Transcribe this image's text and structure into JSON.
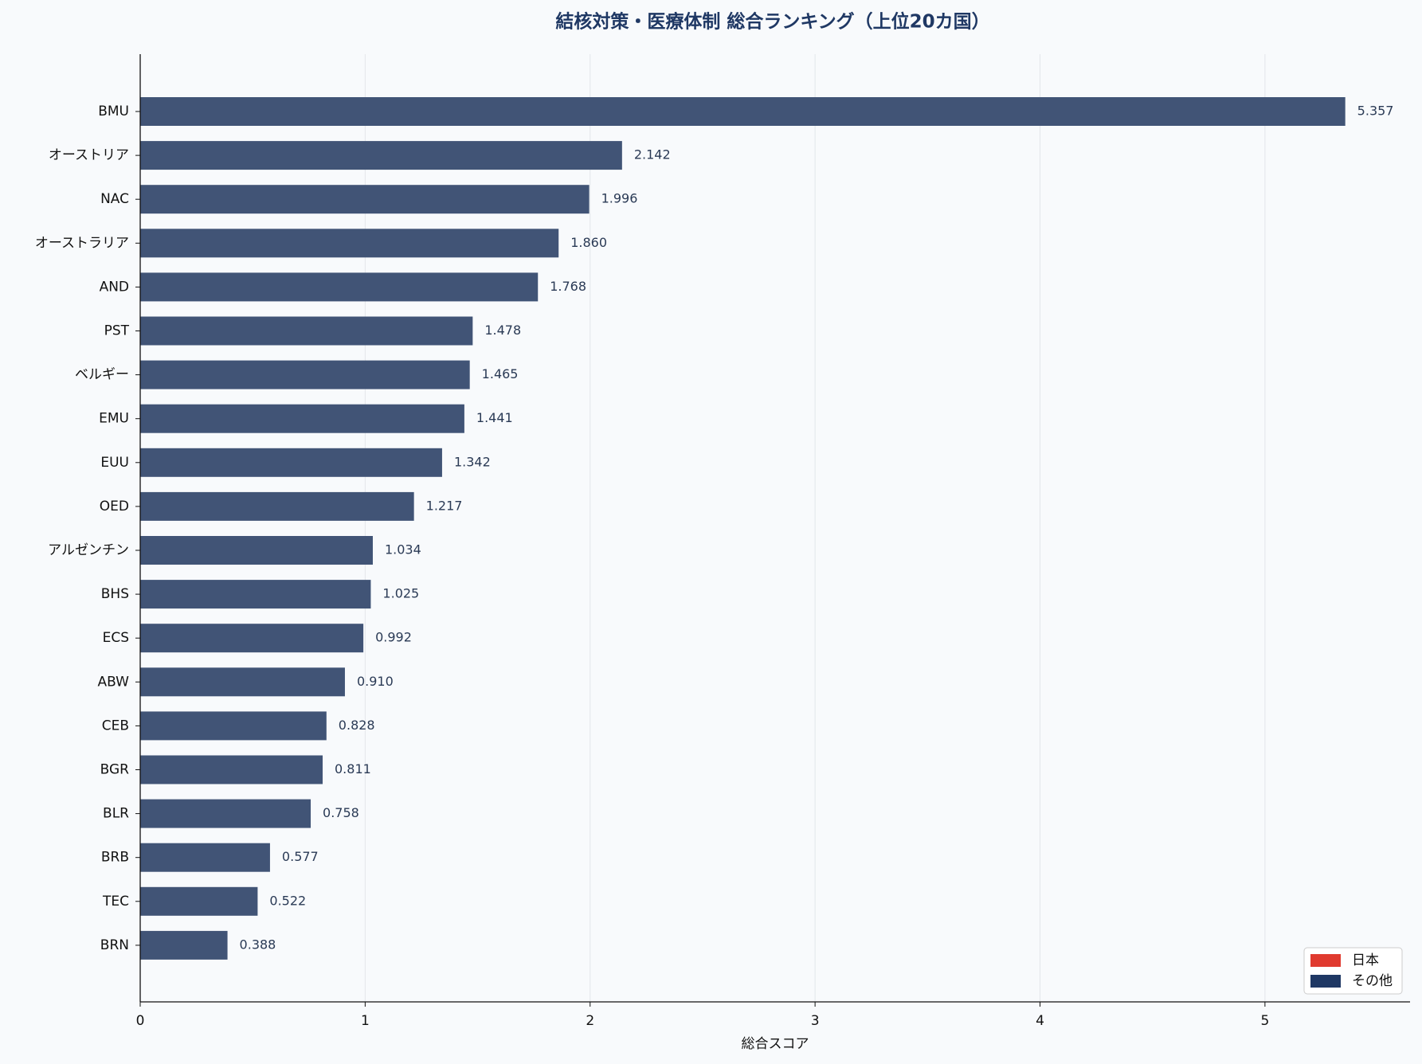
{
  "chart_data": {
    "type": "barh",
    "title": "結核対策・医療体制 総合ランキング（上位20カ国）",
    "xlabel": "総合スコア",
    "categories": [
      "BMU",
      "オーストリア",
      "NAC",
      "オーストラリア",
      "AND",
      "PST",
      "ベルギー",
      "EMU",
      "EUU",
      "OED",
      "アルゼンチン",
      "BHS",
      "ECS",
      "ABW",
      "CEB",
      "BGR",
      "BLR",
      "BRB",
      "TEC",
      "BRN"
    ],
    "values": [
      5.357,
      2.142,
      1.996,
      1.86,
      1.768,
      1.478,
      1.465,
      1.441,
      1.342,
      1.217,
      1.034,
      1.025,
      0.992,
      0.91,
      0.828,
      0.811,
      0.758,
      0.577,
      0.522,
      0.388
    ],
    "value_labels": [
      "5.357",
      "2.142",
      "1.996",
      "1.860",
      "1.768",
      "1.478",
      "1.465",
      "1.441",
      "1.342",
      "1.217",
      "1.034",
      "1.025",
      "0.992",
      "0.910",
      "0.828",
      "0.811",
      "0.758",
      "0.577",
      "0.522",
      "0.388"
    ],
    "color": "#415476",
    "xlim": [
      0,
      5.645
    ],
    "xticks": [
      0,
      1,
      2,
      3,
      4,
      5
    ],
    "grid": true,
    "legend_position": "lower right",
    "legend": [
      {
        "name": "日本",
        "color": "#e03a2f"
      },
      {
        "name": "その他",
        "color": "#1f3864"
      }
    ]
  }
}
